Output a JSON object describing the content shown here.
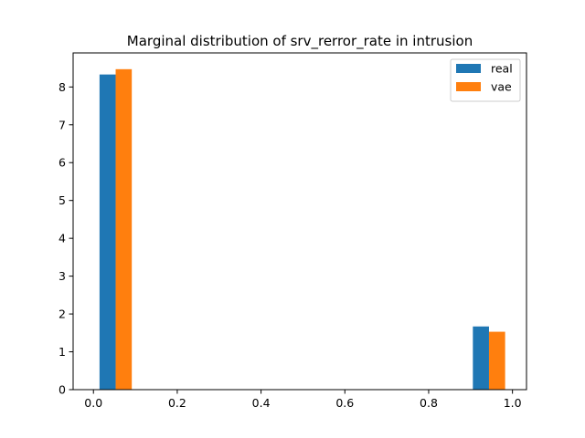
{
  "chart_data": {
    "type": "bar",
    "title": "Marginal distribution of srv_rerror_rate in intrusion",
    "xlabel": "",
    "ylabel": "",
    "xlim": [
      -0.0485,
      1.0335
    ],
    "ylim": [
      0,
      8.9
    ],
    "xticks": [
      0.0,
      0.2,
      0.4,
      0.6,
      0.8,
      1.0
    ],
    "xtick_labels": [
      "0.0",
      "0.2",
      "0.4",
      "0.6",
      "0.8",
      "1.0"
    ],
    "yticks": [
      0,
      1,
      2,
      3,
      4,
      5,
      6,
      7,
      8
    ],
    "ytick_labels": [
      "0",
      "1",
      "2",
      "3",
      "4",
      "5",
      "6",
      "7",
      "8"
    ],
    "grid": false,
    "legend_position": "top-right",
    "series": [
      {
        "name": "real",
        "color": "#1f77b4",
        "bars": [
          {
            "x0": 0.0145,
            "x1": 0.053,
            "value": 8.33
          },
          {
            "x0": 0.9055,
            "x1": 0.944,
            "value": 1.67
          }
        ]
      },
      {
        "name": "vae",
        "color": "#ff7f0e",
        "bars": [
          {
            "x0": 0.053,
            "x1": 0.0915,
            "value": 8.47
          },
          {
            "x0": 0.944,
            "x1": 0.9825,
            "value": 1.53
          }
        ]
      }
    ]
  }
}
